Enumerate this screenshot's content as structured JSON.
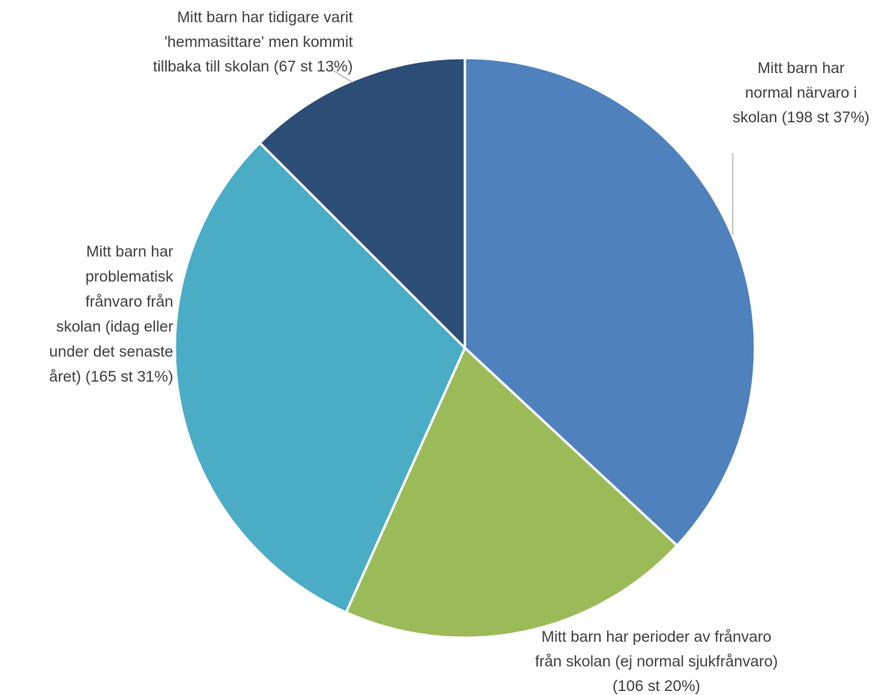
{
  "chart_data": {
    "type": "pie",
    "title": "",
    "categories": [
      "Mitt barn har normal närvaro i skolan",
      "Mitt barn har perioder av frånvaro från skolan (ej normal sjukfrånvaro)",
      "Mitt barn har problematisk frånvaro från skolan (idag eller under det senaste året)",
      "Mitt barn har tidigare varit 'hemmasittare' men kommit tillbaka till skolan"
    ],
    "values": [
      198,
      106,
      165,
      67
    ],
    "percentages": [
      37,
      20,
      31,
      13
    ],
    "colors": [
      "#4f81bd",
      "#9bbb59",
      "#4bacc6",
      "#2c4d75"
    ],
    "labels": [
      {
        "lines": [
          "Mitt barn har",
          "normal närvaro i",
          "skolan (198 st 37%)"
        ]
      },
      {
        "lines": [
          "Mitt barn har perioder av frånvaro",
          "från skolan (ej normal sjukfrånvaro)",
          "(106 st 20%)"
        ]
      },
      {
        "lines": [
          "Mitt barn har",
          "problematisk",
          "frånvaro från",
          "skolan (idag eller",
          "under det senaste",
          "året) (165 st 31%)"
        ]
      },
      {
        "lines": [
          "Mitt barn har tidigare varit",
          "'hemmasittare' men kommit",
          "tillbaka till skolan (67 st 13%)"
        ]
      }
    ],
    "start_angle_deg": 0,
    "direction": "clockwise",
    "legend": "none"
  }
}
